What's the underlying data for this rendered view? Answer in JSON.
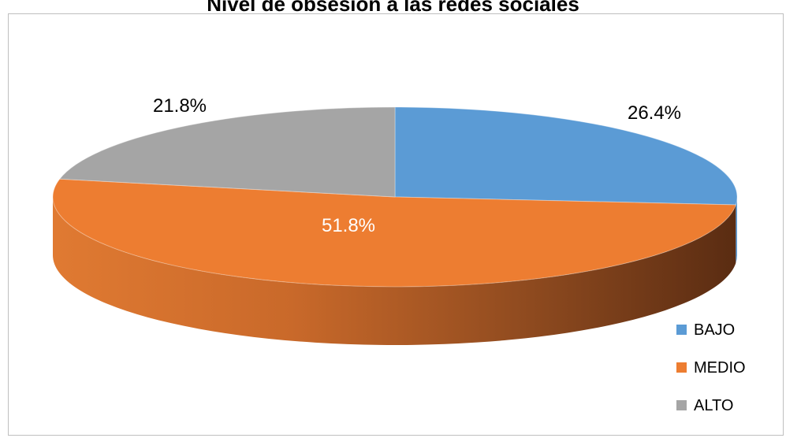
{
  "chart_data": {
    "type": "pie",
    "title": "Nivel de obsesión a las redes sociales",
    "categories": [
      "BAJO",
      "MEDIO",
      "ALTO"
    ],
    "values": [
      26.4,
      51.8,
      21.8
    ],
    "labels": [
      "26.4%",
      "51.8%",
      "21.8%"
    ],
    "colors": [
      "#5B9BD5",
      "#ED7D31",
      "#A5A5A5"
    ],
    "legend_position": "right",
    "legend": [
      "BAJO",
      "MEDIO",
      "ALTO"
    ],
    "style": "3d"
  }
}
